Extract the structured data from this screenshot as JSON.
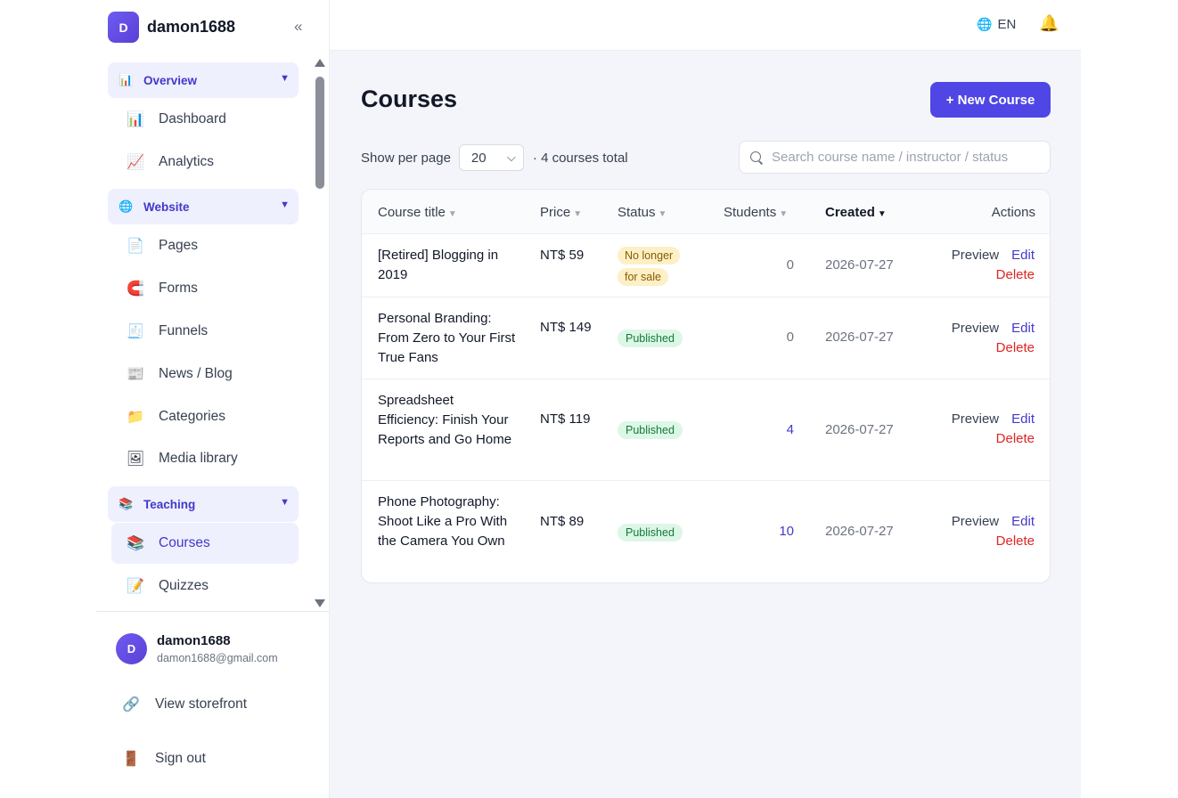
{
  "sidebar": {
    "brand": {
      "initial": "D",
      "name": "damon1688"
    },
    "collapse_icon": "double-chevron-left",
    "groups": [
      {
        "label": "Overview",
        "icon": "bar-chart-icon",
        "items": [
          {
            "label": "Dashboard",
            "icon": "bar-chart-icon"
          },
          {
            "label": "Analytics",
            "icon": "line-chart-icon"
          }
        ]
      },
      {
        "label": "Website",
        "icon": "globe-icon",
        "items": [
          {
            "label": "Pages",
            "icon": "page-icon"
          },
          {
            "label": "Forms",
            "icon": "magnet-icon"
          },
          {
            "label": "Funnels",
            "icon": "funnel-icon"
          },
          {
            "label": "News / Blog",
            "icon": "newspaper-icon"
          },
          {
            "label": "Categories",
            "icon": "folder-icon"
          },
          {
            "label": "Media library",
            "icon": "image-icon"
          }
        ]
      },
      {
        "label": "Teaching",
        "icon": "books-icon",
        "items": [
          {
            "label": "Courses",
            "icon": "books-icon",
            "active": true
          },
          {
            "label": "Quizzes",
            "icon": "memo-icon"
          }
        ]
      }
    ],
    "user": {
      "initial": "D",
      "name": "damon1688",
      "email": "damon1688@gmail.com"
    },
    "view_storefront": "View storefront",
    "sign_out": "Sign out"
  },
  "topbar": {
    "language": "EN",
    "language_icon": "globe-icon",
    "notification_icon": "bell-icon"
  },
  "main": {
    "title": "Courses",
    "new_button": "+ New Course",
    "per_page_label": "Show per page",
    "per_page_value": "20",
    "total_text": "· 4 courses total",
    "search_placeholder": "Search course name / instructor / status"
  },
  "table": {
    "headers": {
      "title": "Course title",
      "price": "Price",
      "status": "Status",
      "students": "Students",
      "created": "Created",
      "actions": "Actions"
    },
    "sorted_by": "Created",
    "action_labels": {
      "preview": "Preview",
      "edit": "Edit",
      "delete": "Delete"
    },
    "rows": [
      {
        "title": "[Retired] Blogging in 2019",
        "price": "NT$ 59",
        "status": "No longer for sale",
        "status_type": "retired",
        "students": "0",
        "created": "2026-07-27"
      },
      {
        "title": "Personal Branding: From Zero to Your First True Fans",
        "price": "NT$ 149",
        "status": "Published",
        "status_type": "published",
        "students": "0",
        "created": "2026-07-27"
      },
      {
        "title": "Spreadsheet Efficiency: Finish Your Reports and Go Home",
        "price": "NT$ 119",
        "status": "Published",
        "status_type": "published",
        "students": "4",
        "created": "2026-07-27"
      },
      {
        "title": "Phone Photography: Shoot Like a Pro With the Camera You Own",
        "price": "NT$ 89",
        "status": "Published",
        "status_type": "published",
        "students": "10",
        "created": "2026-07-27"
      }
    ]
  }
}
